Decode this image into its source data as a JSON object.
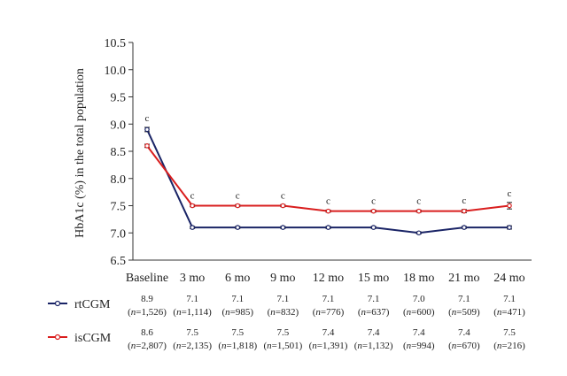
{
  "chart_data": {
    "type": "line",
    "ylabel": "HbA1c (%) in the total population",
    "categories": [
      "Baseline",
      "3 mo",
      "6 mo",
      "9 mo",
      "12 mo",
      "15 mo",
      "18 mo",
      "21 mo",
      "24 mo"
    ],
    "ylim": [
      6.5,
      10.5
    ],
    "yticks": [
      "6.5",
      "7.0",
      "7.5",
      "8.0",
      "8.5",
      "9.0",
      "9.5",
      "10.0",
      "10.5"
    ],
    "significance_marks": [
      "c",
      "c",
      "c",
      "c",
      "c",
      "c",
      "c",
      "c",
      "c"
    ],
    "series": [
      {
        "name": "rtCGM",
        "color": "#1a2466",
        "values": [
          8.9,
          7.1,
          7.1,
          7.1,
          7.1,
          7.1,
          7.0,
          7.1,
          7.1
        ],
        "value_labels": [
          "8.9",
          "7.1",
          "7.1",
          "7.1",
          "7.1",
          "7.1",
          "7.0",
          "7.1",
          "7.1"
        ],
        "n_labels": [
          "(n=1,526)",
          "(n=1,114)",
          "(n=985)",
          "(n=832)",
          "(n=776)",
          "(n=637)",
          "(n=600)",
          "(n=509)",
          "(n=471)"
        ],
        "errors": [
          0.04,
          0.02,
          0.02,
          0.02,
          0.02,
          0.02,
          0.02,
          0.02,
          0.03
        ]
      },
      {
        "name": "isCGM",
        "color": "#d91e1e",
        "values": [
          8.6,
          7.5,
          7.5,
          7.5,
          7.4,
          7.4,
          7.4,
          7.4,
          7.5
        ],
        "value_labels": [
          "8.6",
          "7.5",
          "7.5",
          "7.5",
          "7.4",
          "7.4",
          "7.4",
          "7.4",
          "7.5"
        ],
        "n_labels": [
          "(n=2,807)",
          "(n=2,135)",
          "(n=1,818)",
          "(n=1,501)",
          "(n=1,391)",
          "(n=1,132)",
          "(n=994)",
          "(n=670)",
          "(n=216)"
        ],
        "errors": [
          0.03,
          0.02,
          0.02,
          0.02,
          0.02,
          0.02,
          0.02,
          0.03,
          0.06
        ]
      }
    ]
  }
}
